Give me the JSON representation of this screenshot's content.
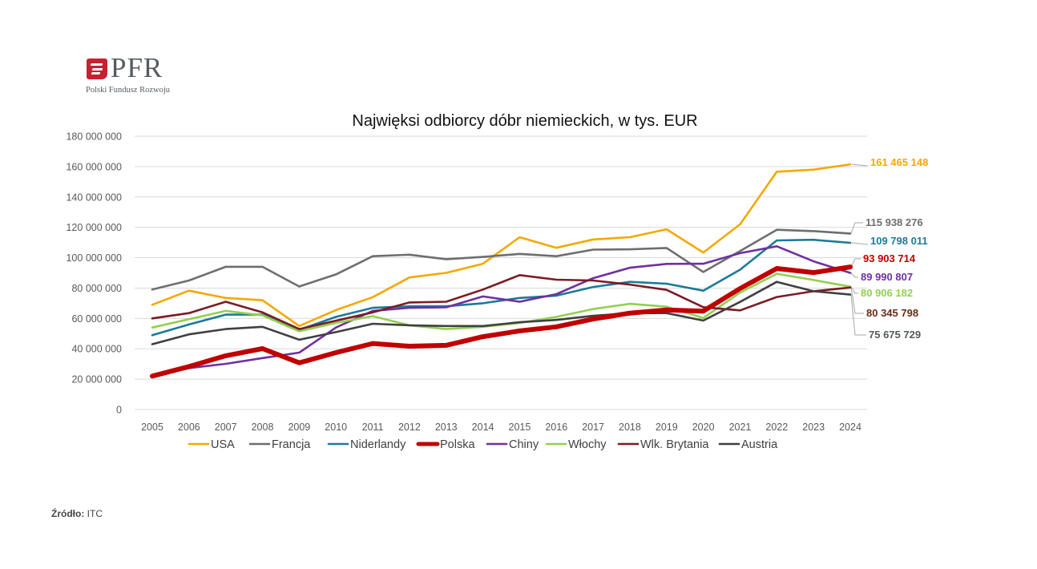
{
  "logo": {
    "brand": "PFR",
    "subtitle": "Polski Fundusz Rozwoju"
  },
  "source": {
    "label": "Źródło:",
    "value": "ITC"
  },
  "chart_data": {
    "type": "line",
    "title": "Najwięksi odbiorcy dóbr niemieckich, w tys.  EUR",
    "xlabel": "",
    "ylabel": "",
    "ylim": [
      0,
      180000000
    ],
    "yticks": [
      0,
      20000000,
      40000000,
      60000000,
      80000000,
      100000000,
      120000000,
      140000000,
      160000000,
      180000000
    ],
    "ytick_labels": [
      "0",
      "20 000 000",
      "40 000 000",
      "60 000 000",
      "80 000 000",
      "100 000 000",
      "120 000 000",
      "140 000 000",
      "160 000 000",
      "180 000 000"
    ],
    "grid": true,
    "legend_position": "bottom",
    "x": [
      "2005",
      "2006",
      "2007",
      "2008",
      "2009",
      "2010",
      "2011",
      "2012",
      "2013",
      "2014",
      "2015",
      "2016",
      "2017",
      "2018",
      "2019",
      "2020",
      "2021",
      "2022",
      "2023",
      "2024"
    ],
    "series": [
      {
        "name": "USA",
        "color": "#F5A800",
        "width": "normal",
        "end_label": "161 465 148",
        "label_color": "#F5A800",
        "values": [
          69000000,
          78300000,
          73500000,
          72000000,
          55000000,
          65500000,
          74000000,
          87000000,
          90000000,
          96000000,
          113500000,
          106500000,
          112000000,
          113500000,
          118700000,
          103400000,
          122000000,
          156600000,
          158000000,
          161465148
        ]
      },
      {
        "name": "Francja",
        "color": "#6D6E71",
        "width": "normal",
        "end_label": "115 938 276",
        "label_color": "#6D6E71",
        "values": [
          79000000,
          85000000,
          94000000,
          94000000,
          81000000,
          89000000,
          101000000,
          102000000,
          99000000,
          100500000,
          102500000,
          101000000,
          105300000,
          105500000,
          106400000,
          90600000,
          104400000,
          118400000,
          117500000,
          115938276
        ]
      },
      {
        "name": "Niderlandy",
        "color": "#1B7A99",
        "width": "normal",
        "end_label": "109 798 011",
        "label_color": "#1B7A99",
        "values": [
          49000000,
          56000000,
          62500000,
          62500000,
          52500000,
          61000000,
          67000000,
          68000000,
          68000000,
          70000000,
          73500000,
          75000000,
          80700000,
          84100000,
          82900000,
          78300000,
          92100000,
          111400000,
          111800000,
          109798011
        ]
      },
      {
        "name": "Polska",
        "color": "#C00000",
        "width": "thick",
        "end_label": "93 903 714",
        "label_color": "#C00000",
        "values": [
          22000000,
          28300000,
          35400000,
          40100000,
          30800000,
          37500000,
          43500000,
          41700000,
          42300000,
          48000000,
          51800000,
          54500000,
          59600000,
          63500000,
          65600000,
          64800000,
          79700000,
          92900000,
          90200000,
          93903714
        ]
      },
      {
        "name": "Chiny",
        "color": "#7030A0",
        "width": "normal",
        "end_label": "89 990 807",
        "label_color": "#7030A0",
        "values": [
          21600000,
          27300000,
          30100000,
          33900000,
          37500000,
          54000000,
          65000000,
          67000000,
          67300000,
          74500000,
          71000000,
          76000000,
          86500000,
          93400000,
          95900000,
          96000000,
          103000000,
          107500000,
          97600000,
          89990807
        ]
      },
      {
        "name": "Włochy",
        "color": "#92D050",
        "width": "normal",
        "end_label": "80 906 182",
        "label_color": "#92D050",
        "values": [
          54000000,
          59500000,
          65000000,
          62000000,
          51500000,
          57000000,
          61500000,
          55500000,
          53000000,
          54500000,
          57000000,
          61000000,
          66200000,
          69600000,
          67700000,
          60300000,
          77000000,
          89400000,
          85300000,
          80906182
        ]
      },
      {
        "name": "Wlk. Brytania",
        "color": "#7B1C25",
        "width": "normal",
        "end_label": "80 345 798",
        "label_color": "#6B2A16",
        "values": [
          60000000,
          63500000,
          71000000,
          64000000,
          53000000,
          58500000,
          64000000,
          70500000,
          71000000,
          79000000,
          88500000,
          85500000,
          85000000,
          82300000,
          78800000,
          67400000,
          65300000,
          74100000,
          77900000,
          80345798
        ]
      },
      {
        "name": "Austria",
        "color": "#404040",
        "width": "normal",
        "end_label": "75 675 729",
        "label_color": "#555A5E",
        "values": [
          43000000,
          49500000,
          53000000,
          54500000,
          46000000,
          51000000,
          56500000,
          55500000,
          55000000,
          55000000,
          57500000,
          59000000,
          61700000,
          63500000,
          63500000,
          58600000,
          70900000,
          84100000,
          77900000,
          75675729
        ]
      }
    ]
  }
}
